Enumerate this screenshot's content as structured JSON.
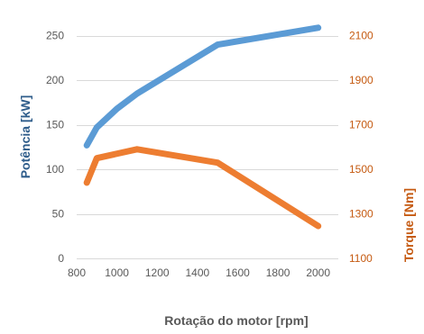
{
  "chart_data": {
    "type": "line",
    "xlabel": "Rotação do motor [rpm]",
    "ylabel": "Potência [kW]",
    "y2label": "Torque [Nm]",
    "xlim": [
      800,
      2100
    ],
    "ylim": [
      0,
      275
    ],
    "y2lim": [
      1100,
      2200
    ],
    "x_ticks": [
      "800",
      "1000",
      "1200",
      "1400",
      "1600",
      "1800",
      "2000"
    ],
    "y_ticks": [
      "0",
      "50",
      "100",
      "150",
      "200",
      "250"
    ],
    "y2_ticks": [
      "1100",
      "1300",
      "1500",
      "1700",
      "1900",
      "2100"
    ],
    "grid": "horizontal",
    "legend": "none",
    "series": [
      {
        "axis": "left",
        "color": "#5b9bd5",
        "x": [
          850,
          900,
          1000,
          1100,
          1500,
          2000
        ],
        "y": [
          127,
          147,
          168,
          185,
          240,
          259
        ]
      },
      {
        "axis": "right",
        "color": "#ed7d31",
        "x": [
          850,
          900,
          1100,
          1500,
          2000
        ],
        "y": [
          1440,
          1550,
          1590,
          1530,
          1245
        ]
      }
    ]
  }
}
